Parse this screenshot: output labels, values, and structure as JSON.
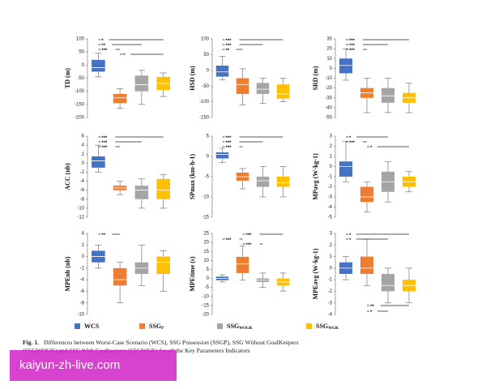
{
  "chart_data": [
    {
      "type": "box",
      "ylabel": "TD (m)",
      "ylim": [
        -200,
        100
      ],
      "yticks": [
        -200,
        -150,
        -100,
        -50,
        0,
        50,
        100
      ],
      "boxes": [
        {
          "min": -45,
          "q1": -25,
          "median": -10,
          "q3": 20,
          "max": 45
        },
        {
          "min": -165,
          "q1": -145,
          "median": -125,
          "q3": -110,
          "max": -90
        },
        {
          "min": -150,
          "q1": -100,
          "median": -75,
          "q3": -40,
          "max": -20
        },
        {
          "min": -120,
          "q1": -95,
          "median": -70,
          "q3": -45,
          "max": -30
        }
      ],
      "brackets": [
        {
          "pair": [
            0,
            3
          ],
          "label": "*"
        },
        {
          "pair": [
            0,
            2
          ],
          "label": "**"
        },
        {
          "pair": [
            0,
            1
          ],
          "label": "***"
        },
        {
          "pair": [
            1,
            3
          ],
          "label": "*"
        }
      ]
    },
    {
      "type": "box",
      "ylabel": "HSD (m)",
      "ylim": [
        -150,
        100
      ],
      "yticks": [
        -150,
        -100,
        -50,
        0,
        50,
        100
      ],
      "boxes": [
        {
          "min": -30,
          "q1": -20,
          "median": -5,
          "q3": 15,
          "max": 45
        },
        {
          "min": -110,
          "q1": -75,
          "median": -45,
          "q3": -25,
          "max": 5
        },
        {
          "min": -105,
          "q1": -75,
          "median": -60,
          "q3": -40,
          "max": -25
        },
        {
          "min": -100,
          "q1": -90,
          "median": -75,
          "q3": -45,
          "max": -25
        }
      ],
      "brackets": [
        {
          "pair": [
            0,
            3
          ],
          "label": "***"
        },
        {
          "pair": [
            0,
            2
          ],
          "label": "***"
        },
        {
          "pair": [
            0,
            1
          ],
          "label": "**"
        }
      ]
    },
    {
      "type": "box",
      "ylabel": "SRD (m)",
      "ylim": [
        -50,
        30
      ],
      "yticks": [
        -50,
        -40,
        -30,
        -20,
        -10,
        0,
        10,
        20,
        30
      ],
      "boxes": [
        {
          "min": -12,
          "q1": -5,
          "median": 3,
          "q3": 10,
          "max": 20
        },
        {
          "min": -45,
          "q1": -30,
          "median": -25,
          "q3": -20,
          "max": -10
        },
        {
          "min": -45,
          "q1": -35,
          "median": -28,
          "q3": -20,
          "max": -10
        },
        {
          "min": -45,
          "q1": -35,
          "median": -30,
          "q3": -25,
          "max": -15
        }
      ],
      "brackets": [
        {
          "pair": [
            0,
            3
          ],
          "label": "***"
        },
        {
          "pair": [
            0,
            2
          ],
          "label": "***"
        },
        {
          "pair": [
            0,
            1
          ],
          "label": "***"
        }
      ]
    },
    {
      "type": "box",
      "ylabel": "ACC (nb)",
      "ylim": [
        -12,
        6
      ],
      "yticks": [
        -12,
        -10,
        -8,
        -6,
        -4,
        -2,
        0,
        2,
        4,
        6
      ],
      "boxes": [
        {
          "min": -2,
          "q1": -1,
          "median": 0.5,
          "q3": 1.5,
          "max": 4
        },
        {
          "min": -7,
          "q1": -6,
          "median": -5.5,
          "q3": -5,
          "max": -4
        },
        {
          "min": -10,
          "q1": -8,
          "median": -6,
          "q3": -5,
          "max": -3.5
        },
        {
          "min": -10,
          "q1": -8,
          "median": -6,
          "q3": -3.5,
          "max": -2.5
        }
      ],
      "brackets": [
        {
          "pair": [
            0,
            3
          ],
          "label": "***"
        },
        {
          "pair": [
            0,
            2
          ],
          "label": "***"
        },
        {
          "pair": [
            0,
            1
          ],
          "label": "***"
        }
      ]
    },
    {
      "type": "box",
      "ylabel": "SPmax (km·h-1)",
      "ylim": [
        -15,
        5
      ],
      "yticks": [
        -15,
        -10,
        -5,
        0,
        5
      ],
      "boxes": [
        {
          "min": -1.5,
          "q1": -0.5,
          "median": 0.5,
          "q3": 1,
          "max": 2
        },
        {
          "min": -8,
          "q1": -6,
          "median": -5,
          "q3": -4,
          "max": -3
        },
        {
          "min": -10,
          "q1": -7.5,
          "median": -6,
          "q3": -5,
          "max": -2.5
        },
        {
          "min": -10,
          "q1": -7.5,
          "median": -6.5,
          "q3": -5,
          "max": -2.5
        }
      ],
      "brackets": [
        {
          "pair": [
            0,
            3
          ],
          "label": "***"
        },
        {
          "pair": [
            0,
            2
          ],
          "label": "***"
        },
        {
          "pair": [
            0,
            1
          ],
          "label": "***"
        }
      ]
    },
    {
      "type": "box",
      "ylabel": "MPavg (W·kg-1)",
      "ylim": [
        -5,
        3
      ],
      "yticks": [
        -5,
        -4,
        -3,
        -2,
        -1,
        0,
        1,
        2,
        3
      ],
      "boxes": [
        {
          "min": -1.5,
          "q1": -1,
          "median": 0,
          "q3": 0.5,
          "max": 2.5
        },
        {
          "min": -4.5,
          "q1": -3.5,
          "median": -3,
          "q3": -2,
          "max": -1.5
        },
        {
          "min": -3.5,
          "q1": -2.5,
          "median": -1.5,
          "q3": -0.5,
          "max": 0.5
        },
        {
          "min": -2.5,
          "q1": -2,
          "median": -1.5,
          "q3": -1,
          "max": -0.5
        }
      ],
      "brackets": [
        {
          "pair": [
            0,
            2
          ],
          "label": "*"
        },
        {
          "pair": [
            0,
            1
          ],
          "label": "***"
        },
        {
          "pair": [
            1,
            3
          ],
          "label": "*"
        }
      ]
    },
    {
      "type": "box",
      "ylabel": "MPEnb (nb)",
      "ylim": [
        -10,
        4
      ],
      "yticks": [
        -10,
        -8,
        -6,
        -4,
        -2,
        0,
        2,
        4
      ],
      "boxes": [
        {
          "min": -2,
          "q1": -1,
          "median": 0,
          "q3": 1,
          "max": 2
        },
        {
          "min": -8,
          "q1": -5,
          "median": -4,
          "q3": -2,
          "max": -1
        },
        {
          "min": -5,
          "q1": -3,
          "median": -2,
          "q3": -1,
          "max": 2
        },
        {
          "min": -6,
          "q1": -3,
          "median": -1,
          "q3": 0,
          "max": 1
        }
      ],
      "brackets": [
        {
          "pair": [
            0,
            1
          ],
          "label": "**"
        }
      ]
    },
    {
      "type": "box",
      "ylabel": "MPEtime (s)",
      "ylim": [
        -20,
        25
      ],
      "yticks": [
        -20,
        -15,
        -10,
        -5,
        0,
        5,
        10,
        15,
        20,
        25
      ],
      "boxes": [
        {
          "min": -2,
          "q1": -1,
          "median": 0,
          "q3": 1,
          "max": 2
        },
        {
          "min": -1,
          "q1": 3,
          "median": 8,
          "q3": 12,
          "max": 18
        },
        {
          "min": -5,
          "q1": -2,
          "median": -1,
          "q3": 0,
          "max": 3
        },
        {
          "min": -7,
          "q1": -4,
          "median": -2,
          "q3": 0,
          "max": 3
        }
      ],
      "brackets": [
        {
          "pair": [
            1,
            3
          ],
          "label": "***"
        },
        {
          "pair": [
            0,
            1
          ],
          "label": "***"
        },
        {
          "pair": [
            1,
            2
          ],
          "label": "***"
        }
      ]
    },
    {
      "type": "box",
      "ylabel": "MPEavg (W·kg-1)",
      "ylim": [
        -4,
        3
      ],
      "yticks": [
        -4,
        -3,
        -2,
        -1,
        0,
        1,
        2,
        3
      ],
      "boxes": [
        {
          "min": -1,
          "q1": -0.5,
          "median": 0,
          "q3": 0.5,
          "max": 1
        },
        {
          "min": -1.5,
          "q1": -0.5,
          "median": 0,
          "q3": 1,
          "max": 2.5
        },
        {
          "min": -3,
          "q1": -2,
          "median": -1.5,
          "q3": -0.5,
          "max": 0
        },
        {
          "min": -3,
          "q1": -2,
          "median": -1.5,
          "q3": -1,
          "max": 0
        }
      ],
      "brackets": [
        {
          "pair": [
            0,
            3
          ],
          "label": "*"
        },
        {
          "pair": [
            0,
            2
          ],
          "label": "*"
        },
        {
          "pair": [
            1,
            2
          ],
          "label": "*",
          "position": "below"
        },
        {
          "pair": [
            1,
            3
          ],
          "label": "**",
          "position": "below"
        }
      ]
    }
  ],
  "legend": [
    {
      "name": "WCS",
      "color": "#4472c4"
    },
    {
      "name": "SSG",
      "sub": "P",
      "color": "#ed7d31"
    },
    {
      "name": "SSG",
      "sub": "WOGK",
      "color": "#a5a5a5"
    },
    {
      "name": "SSG",
      "sub": "WGK",
      "color": "#ffc000"
    }
  ],
  "caption": {
    "label": "Fig. 1.",
    "lines": [
      "Differences between Worst-Case Scenario (WCS), SSG Possession (SSGP), SSG Without GoalKeepers",
      "(SSGWOGK) and SSG With Goalkeepers (SSGWGK) for all the Key Parameters Indicators"
    ]
  },
  "watermark": "kaiyun-zh-live.com"
}
